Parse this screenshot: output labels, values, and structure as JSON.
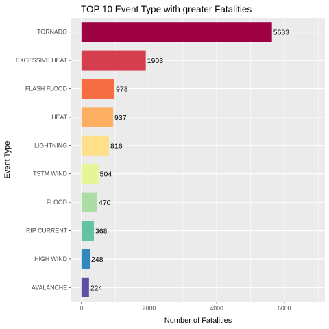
{
  "chart_data": {
    "type": "bar",
    "orientation": "horizontal",
    "title": "TOP 10 Event Type with greater Fatalities",
    "xlabel": "Number of Fatalities",
    "ylabel": "Event Type",
    "categories": [
      "TORNADO",
      "EXCESSIVE HEAT",
      "FLASH FLOOD",
      "HEAT",
      "LIGHTNING",
      "TSTM WIND",
      "FLOOD",
      "RIP CURRENT",
      "HIGH WIND",
      "AVALANCHE"
    ],
    "values": [
      5633,
      1903,
      978,
      937,
      816,
      504,
      470,
      368,
      248,
      224
    ],
    "data_labels": [
      "5633",
      "1903",
      "978",
      "937",
      "816",
      "504",
      "470",
      "368",
      "248",
      "224"
    ],
    "colors": [
      "#9E0142",
      "#D53E4F",
      "#F46D43",
      "#FDAE61",
      "#FEE08B",
      "#E6F598",
      "#ABDDA4",
      "#66C2A5",
      "#3288BD",
      "#5E4FA2"
    ],
    "x_ticks": [
      "0",
      "2000",
      "4000",
      "6000"
    ],
    "xlim": [
      -300,
      7200
    ],
    "grid": true,
    "panel_background": "#EBEBEB",
    "legend": "none"
  }
}
